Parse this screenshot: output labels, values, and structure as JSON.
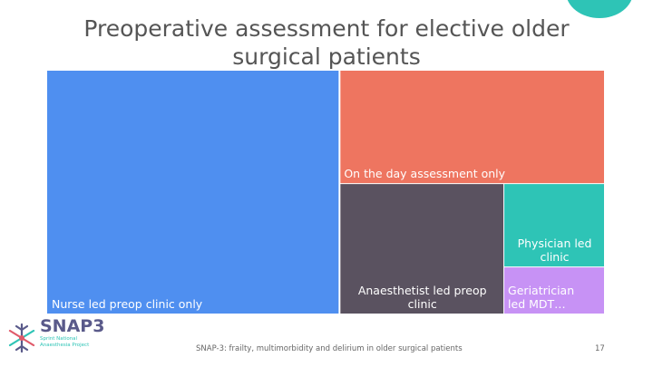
{
  "slide": {
    "title": "Preoperative assessment for elective older surgical patients",
    "footer": "SNAP-3: frailty, multimorbidity and delirium in older surgical patients",
    "page_number": "17"
  },
  "logo": {
    "wordmark": "SNAP3",
    "subtitle": "Sprint National Anaesthesia Project",
    "icon": "snowflake-logo-icon"
  },
  "colors": {
    "accent": "#2ec4b6",
    "nurse": "#4f8ff0",
    "on_the_day": "#ee7560",
    "anaesthetist": "#5a5260",
    "physician": "#2ec4b6",
    "geriatrician": "#c792f5"
  },
  "chart_data": {
    "type": "treemap",
    "title": "Preoperative assessment for elective older surgical patients",
    "items": [
      {
        "label": "Nurse led preop clinic only",
        "value": 52.5,
        "color": "#4f8ff0"
      },
      {
        "label": "On the day assessment only",
        "value": 22.0,
        "color": "#ee7560"
      },
      {
        "label": "Anaesthetist led preop clinic",
        "value": 15.8,
        "color": "#5a5260"
      },
      {
        "label": "Physician led clinic",
        "value": 6.2,
        "color": "#2ec4b6"
      },
      {
        "label": "Geriatrician led MDT…",
        "value": 3.5,
        "color": "#c792f5"
      }
    ]
  }
}
